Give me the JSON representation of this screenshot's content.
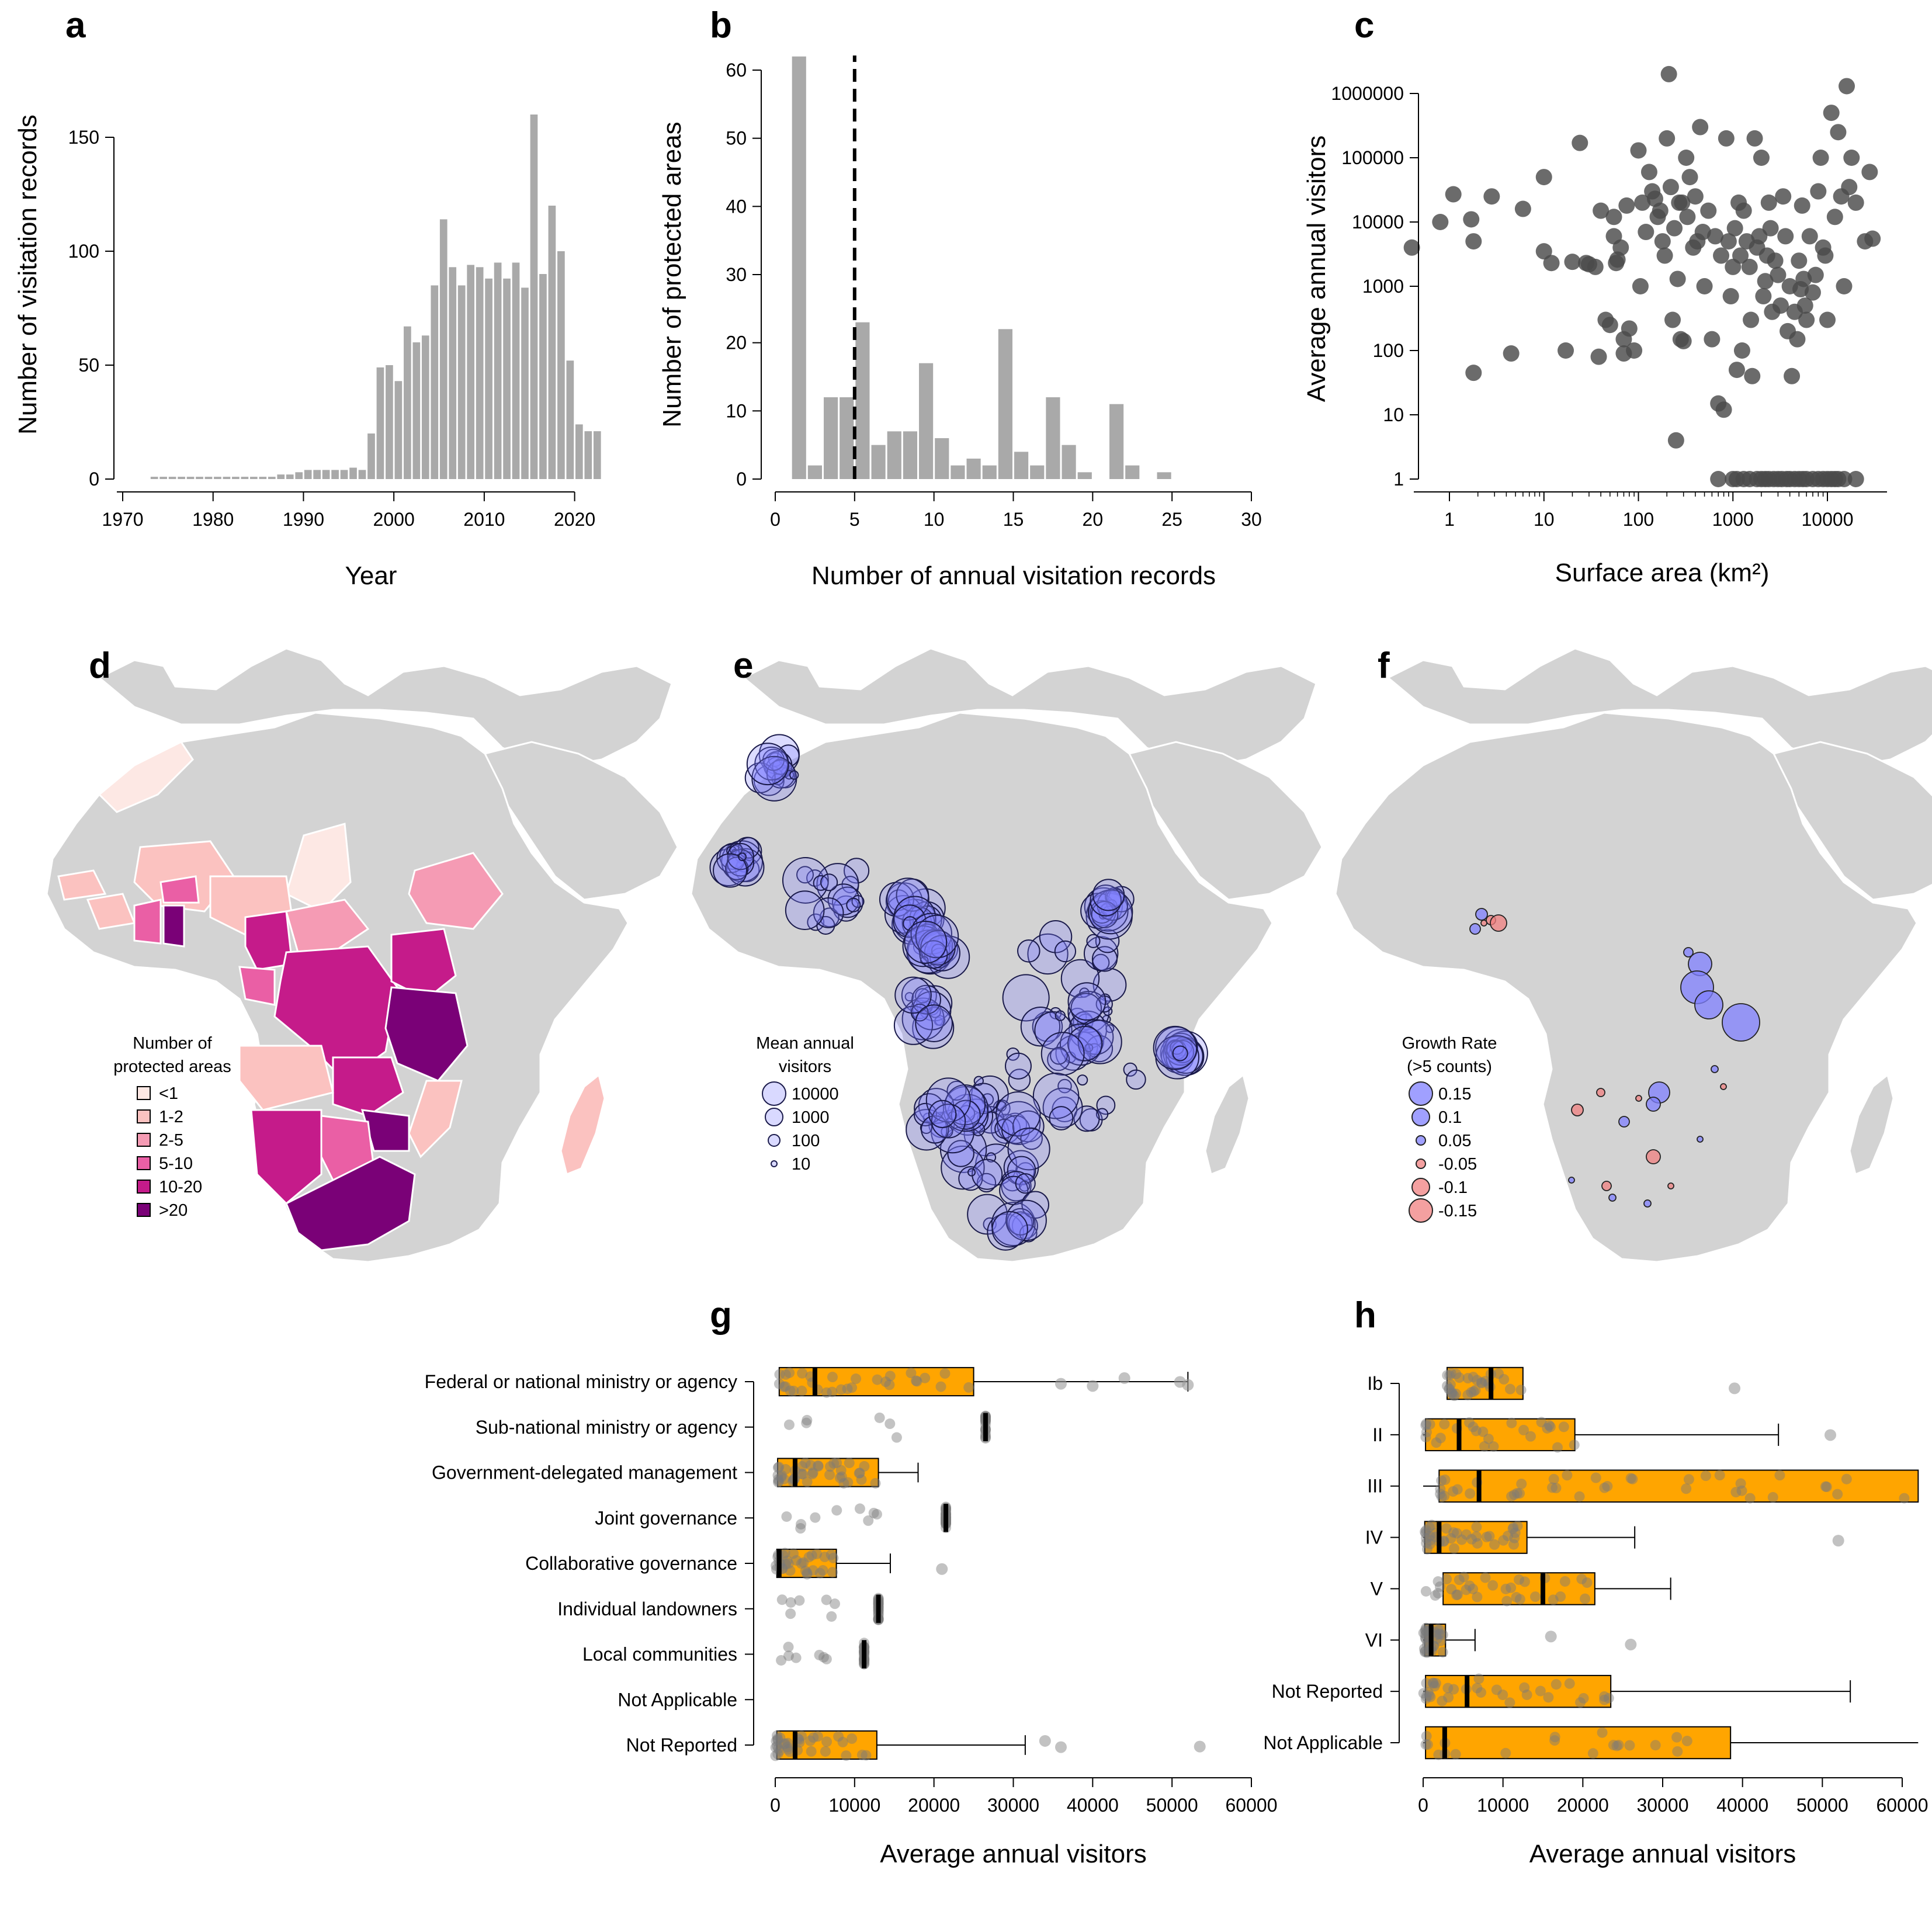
{
  "colors": {
    "bar": "#a9a9a9",
    "point": "#4a4a4a",
    "box": "#ffa500",
    "land": "#d3d3d3",
    "blue": "#8080ff",
    "red": "#f08080",
    "jitter": "#7a7a7a"
  },
  "chart_data": [
    {
      "panel": "a",
      "type": "bar",
      "xlabel": "Year",
      "ylabel": "Number of visitation records",
      "xlim": [
        1970,
        2023
      ],
      "ylim": [
        0,
        160
      ],
      "xticks": [
        "1970",
        "1980",
        "1990",
        "2000",
        "2010",
        "2020"
      ],
      "yticks": [
        "0",
        "50",
        "100",
        "150"
      ],
      "x": [
        1973,
        1974,
        1975,
        1976,
        1977,
        1978,
        1979,
        1980,
        1981,
        1982,
        1983,
        1984,
        1985,
        1986,
        1987,
        1988,
        1989,
        1990,
        1991,
        1992,
        1993,
        1994,
        1995,
        1996,
        1997,
        1998,
        1999,
        2000,
        2001,
        2002,
        2003,
        2004,
        2005,
        2006,
        2007,
        2008,
        2009,
        2010,
        2011,
        2012,
        2013,
        2014,
        2015,
        2016,
        2017,
        2018,
        2019,
        2020,
        2021,
        2022
      ],
      "values": [
        1,
        1,
        1,
        1,
        1,
        1,
        1,
        1,
        1,
        1,
        1,
        1,
        1,
        1,
        2,
        2,
        3,
        4,
        4,
        4,
        4,
        4,
        5,
        4,
        20,
        49,
        50,
        43,
        67,
        60,
        63,
        85,
        114,
        93,
        85,
        94,
        93,
        88,
        95,
        88,
        95,
        84,
        160,
        90,
        120,
        100,
        52,
        24,
        21,
        21
      ]
    },
    {
      "panel": "b",
      "type": "bar",
      "xlabel": "Number of annual visitation records",
      "ylabel": "Number of protected areas",
      "xlim": [
        0,
        30
      ],
      "ylim": [
        0,
        62
      ],
      "xticks": [
        "0",
        "5",
        "10",
        "15",
        "20",
        "25",
        "30"
      ],
      "yticks": [
        "0",
        "10",
        "20",
        "30",
        "40",
        "50",
        "60"
      ],
      "bin_left": [
        1,
        2,
        3,
        4,
        5,
        6,
        7,
        8,
        9,
        10,
        11,
        12,
        13,
        14,
        15,
        16,
        17,
        18,
        19,
        20,
        21,
        22,
        23,
        24
      ],
      "values": [
        62,
        2,
        12,
        12,
        23,
        5,
        7,
        7,
        17,
        6,
        2,
        3,
        2,
        22,
        4,
        2,
        12,
        5,
        1,
        0,
        11,
        2,
        0,
        1
      ],
      "vline": 5
    },
    {
      "panel": "c",
      "type": "scatter",
      "xscale": "log",
      "yscale": "log",
      "xlabel": "Surface area (km²)",
      "ylabel": "Average annual visitors",
      "xlim": [
        0.5,
        35000
      ],
      "ylim": [
        1,
        2000000
      ],
      "xticks": [
        "1",
        "10",
        "100",
        "1000",
        "10000"
      ],
      "yticks": [
        "1",
        "10",
        "100",
        "1000",
        "10000",
        "100000",
        "1000000"
      ],
      "points": [
        [
          0.4,
          4000
        ],
        [
          0.8,
          10000
        ],
        [
          1.1,
          27000
        ],
        [
          1.7,
          11000
        ],
        [
          1.8,
          5000
        ],
        [
          2.8,
          25000
        ],
        [
          1.8,
          45
        ],
        [
          4.5,
          90
        ],
        [
          6,
          16000
        ],
        [
          10,
          50000
        ],
        [
          10,
          3500
        ],
        [
          12,
          2300
        ],
        [
          17,
          100
        ],
        [
          20,
          2400
        ],
        [
          24,
          170000
        ],
        [
          28,
          2300
        ],
        [
          30,
          2200
        ],
        [
          35,
          2000
        ],
        [
          38,
          80
        ],
        [
          40,
          15000
        ],
        [
          45,
          300
        ],
        [
          50,
          250
        ],
        [
          55,
          12000
        ],
        [
          55,
          6000
        ],
        [
          58,
          2300
        ],
        [
          60,
          2600
        ],
        [
          65,
          4000
        ],
        [
          70,
          150
        ],
        [
          70,
          90
        ],
        [
          75,
          18000
        ],
        [
          80,
          220
        ],
        [
          90,
          100
        ],
        [
          100,
          130000
        ],
        [
          105,
          1000
        ],
        [
          110,
          20000
        ],
        [
          120,
          7000
        ],
        [
          130,
          60000
        ],
        [
          140,
          30000
        ],
        [
          150,
          23000
        ],
        [
          160,
          12000
        ],
        [
          170,
          15000
        ],
        [
          180,
          5000
        ],
        [
          190,
          3000
        ],
        [
          200,
          200000
        ],
        [
          210,
          2000000
        ],
        [
          220,
          35000
        ],
        [
          230,
          300
        ],
        [
          240,
          8000
        ],
        [
          250,
          4
        ],
        [
          260,
          1300
        ],
        [
          270,
          20000
        ],
        [
          280,
          150
        ],
        [
          290,
          20000
        ],
        [
          300,
          140
        ],
        [
          320,
          100000
        ],
        [
          330,
          12000
        ],
        [
          350,
          50000
        ],
        [
          380,
          4000
        ],
        [
          400,
          25000
        ],
        [
          420,
          5000
        ],
        [
          450,
          300000
        ],
        [
          480,
          7000
        ],
        [
          500,
          1000
        ],
        [
          550,
          15000
        ],
        [
          600,
          150
        ],
        [
          650,
          6000
        ],
        [
          700,
          15
        ],
        [
          750,
          3000
        ],
        [
          800,
          12
        ],
        [
          850,
          200000
        ],
        [
          900,
          5000
        ],
        [
          950,
          700
        ],
        [
          1000,
          2000
        ],
        [
          1050,
          8000
        ],
        [
          1100,
          50
        ],
        [
          1150,
          20000
        ],
        [
          1200,
          3000
        ],
        [
          1250,
          100
        ],
        [
          1300,
          15000
        ],
        [
          1400,
          5000
        ],
        [
          1500,
          2000
        ],
        [
          1550,
          300
        ],
        [
          1600,
          40
        ],
        [
          1700,
          200000
        ],
        [
          1800,
          4000
        ],
        [
          1900,
          6000
        ],
        [
          2000,
          100000
        ],
        [
          2100,
          700
        ],
        [
          2200,
          1200
        ],
        [
          2300,
          3000
        ],
        [
          2400,
          20000
        ],
        [
          2500,
          8000
        ],
        [
          2600,
          400
        ],
        [
          2800,
          2500
        ],
        [
          3000,
          1500
        ],
        [
          3200,
          500
        ],
        [
          3400,
          25000
        ],
        [
          3600,
          6000
        ],
        [
          3800,
          200
        ],
        [
          4000,
          1000
        ],
        [
          4200,
          40
        ],
        [
          4500,
          400
        ],
        [
          4800,
          150
        ],
        [
          5000,
          2500
        ],
        [
          5200,
          900
        ],
        [
          5400,
          18000
        ],
        [
          5600,
          1300
        ],
        [
          5800,
          500
        ],
        [
          6000,
          300
        ],
        [
          6500,
          6000
        ],
        [
          7000,
          800
        ],
        [
          7500,
          1500
        ],
        [
          8000,
          30000
        ],
        [
          8500,
          100000
        ],
        [
          9000,
          4000
        ],
        [
          9500,
          3000
        ],
        [
          10000,
          300
        ],
        [
          11000,
          500000
        ],
        [
          12000,
          12000
        ],
        [
          13000,
          250000
        ],
        [
          14000,
          25000
        ],
        [
          15000,
          1000
        ],
        [
          16000,
          1300000
        ],
        [
          17000,
          35000
        ],
        [
          18000,
          100000
        ],
        [
          20000,
          20000
        ],
        [
          25000,
          5000
        ],
        [
          28000,
          60000
        ],
        [
          30000,
          5500
        ],
        [
          700,
          1
        ],
        [
          1000,
          1
        ],
        [
          1100,
          1
        ],
        [
          1300,
          1
        ],
        [
          1500,
          1
        ],
        [
          1800,
          1
        ],
        [
          2000,
          1
        ],
        [
          2200,
          1
        ],
        [
          2400,
          1
        ],
        [
          2700,
          1
        ],
        [
          3000,
          1
        ],
        [
          3300,
          1
        ],
        [
          3700,
          1
        ],
        [
          4000,
          1
        ],
        [
          4500,
          1
        ],
        [
          5000,
          1
        ],
        [
          5500,
          1
        ],
        [
          6000,
          1
        ],
        [
          7000,
          1
        ],
        [
          8000,
          1
        ],
        [
          9000,
          1
        ],
        [
          10000,
          1
        ],
        [
          11000,
          1
        ],
        [
          12000,
          1
        ],
        [
          13000,
          1
        ],
        [
          15000,
          1
        ],
        [
          20000,
          1
        ]
      ]
    },
    {
      "panel": "g",
      "type": "box",
      "orientation": "horizontal",
      "xlabel": "Average annual visitors",
      "xlim": [
        0,
        60000
      ],
      "xticks": [
        "0",
        "10000",
        "20000",
        "30000",
        "40000",
        "50000",
        "60000"
      ],
      "categories": [
        "Federal or national ministry or agency",
        "Sub-national ministry or agency",
        "Government-delegated management",
        "Joint governance",
        "Collaborative governance",
        "Individual landowners",
        "Local communities",
        "Not Applicable",
        "Not Reported"
      ],
      "boxes": [
        {
          "q1": 500,
          "median": 5000,
          "q3": 25000,
          "whisker_high": 52000
        },
        {
          "q1": 26500,
          "median": 26500,
          "q3": 26500,
          "whisker_high": 26500
        },
        {
          "q1": 300,
          "median": 2500,
          "q3": 13000,
          "whisker_high": 18000
        },
        {
          "q1": 21500,
          "median": 21500,
          "q3": 21500,
          "whisker_high": 21500
        },
        {
          "q1": 200,
          "median": 500,
          "q3": 7700,
          "whisker_high": 14500
        },
        {
          "q1": 13000,
          "median": 13000,
          "q3": 13000,
          "whisker_high": 13000
        },
        {
          "q1": 11200,
          "median": 11200,
          "q3": 11200,
          "whisker_high": 11200
        },
        null,
        {
          "q1": 200,
          "median": 2500,
          "q3": 12800,
          "whisker_high": 31500
        }
      ],
      "outliers": [
        [
          36000,
          40000,
          44000,
          51000,
          52000
        ],
        [],
        [],
        [],
        [
          21000
        ],
        [],
        [],
        [],
        [
          34000,
          36000,
          53500
        ]
      ]
    },
    {
      "panel": "h",
      "type": "box",
      "orientation": "horizontal",
      "xlabel": "Average annual visitors",
      "xlim": [
        0,
        62000
      ],
      "xticks": [
        "0",
        "10000",
        "20000",
        "30000",
        "40000",
        "50000",
        "60000"
      ],
      "categories": [
        "Ib",
        "II",
        "III",
        "IV",
        "V",
        "VI",
        "Not Reported",
        "Not Applicable"
      ],
      "boxes": [
        {
          "q1": 3000,
          "median": 8500,
          "q3": 12500,
          "whisker_low": 3000,
          "whisker_high": 12500
        },
        {
          "q1": 300,
          "median": 4500,
          "q3": 19000,
          "whisker_low": 0,
          "whisker_high": 44500
        },
        {
          "q1": 2000,
          "median": 7000,
          "q3": 62000,
          "whisker_low": 0,
          "whisker_high": 62000
        },
        {
          "q1": 200,
          "median": 2000,
          "q3": 13000,
          "whisker_low": 0,
          "whisker_high": 26500
        },
        {
          "q1": 2500,
          "median": 15000,
          "q3": 21500,
          "whisker_low": 2500,
          "whisker_high": 31000
        },
        {
          "q1": 200,
          "median": 1000,
          "q3": 2800,
          "whisker_low": 0,
          "whisker_high": 6500
        },
        {
          "q1": 300,
          "median": 5500,
          "q3": 23500,
          "whisker_low": 0,
          "whisker_high": 53500
        },
        {
          "q1": 300,
          "median": 2700,
          "q3": 38500,
          "whisker_low": 0,
          "whisker_high": 62000
        }
      ],
      "outliers": [
        [
          39000
        ],
        [
          51000
        ],
        [],
        [
          52000
        ],
        [],
        [
          16000,
          26000
        ],
        [],
        []
      ]
    }
  ],
  "maps": {
    "d": {
      "legend_title": [
        "Number of",
        "protected areas"
      ],
      "legend": [
        {
          "label": "<1",
          "color": "#fde8e4"
        },
        {
          "label": "1-2",
          "color": "#fbc2c0"
        },
        {
          "label": "2-5",
          "color": "#f59bb4"
        },
        {
          "label": "5-10",
          "color": "#ea5fa5"
        },
        {
          "label": "10-20",
          "color": "#c51b8a"
        },
        {
          "label": ">20",
          "color": "#7a0177"
        }
      ]
    },
    "e": {
      "legend_title": [
        "Mean annual",
        "visitors"
      ],
      "legend": [
        "10000",
        "1000",
        "100",
        "10"
      ]
    },
    "f": {
      "legend_title": [
        "Growth Rate",
        "(>5 counts)"
      ],
      "legend": [
        "0.15",
        "0.1",
        "0.05",
        "-0.05",
        "-0.1",
        "-0.15"
      ]
    }
  },
  "panel_labels": [
    "a",
    "b",
    "c",
    "d",
    "e",
    "f",
    "g",
    "h"
  ]
}
